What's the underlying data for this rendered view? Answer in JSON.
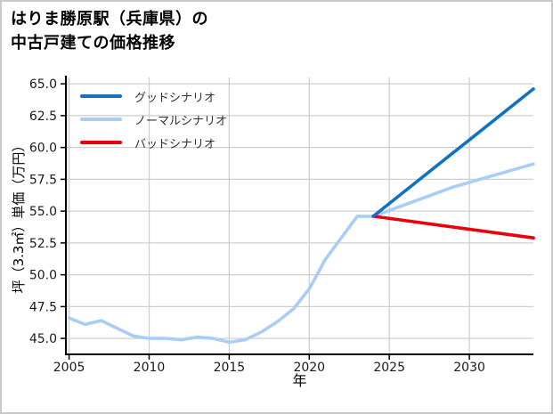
{
  "canvas": {
    "background": "#ffffff",
    "border_color": "#c8c8c8"
  },
  "header": {
    "title": "はりま勝原駅（兵庫県）の\n中古戸建ての価格推移"
  },
  "chart_data": {
    "type": "line",
    "title": "はりま勝原駅（兵庫県）の中古戸建ての価格推移",
    "xlabel": "年",
    "ylabel": "坪（3.3㎡）単価（万円）",
    "xlim": [
      2004.8,
      2034
    ],
    "ylim": [
      43.75,
      65.5
    ],
    "x_ticks": [
      "2005",
      "2010",
      "2015",
      "2020",
      "2025",
      "2030"
    ],
    "y_ticks": [
      "45.0",
      "47.5",
      "50.0",
      "52.5",
      "55.0",
      "57.5",
      "60.0",
      "62.5",
      "65.0"
    ],
    "grid": true,
    "grid_color": "#cfcfcf",
    "axis_color": "#000000",
    "tick_label_color": "#1a1a1a",
    "legend_position": "upper-left",
    "history": {
      "color": "#a9cdf4",
      "years": [
        2005,
        2006,
        2007,
        2008,
        2009,
        2010,
        2011,
        2012,
        2013,
        2014,
        2015,
        2016,
        2017,
        2018,
        2019,
        2020,
        2021,
        2022,
        2023,
        2024
      ],
      "values": [
        46.6,
        46.1,
        46.4,
        45.8,
        45.2,
        45.0,
        45.0,
        44.9,
        45.1,
        45.0,
        44.7,
        44.9,
        45.5,
        46.3,
        47.3,
        48.9,
        51.2,
        52.9,
        54.6,
        54.6
      ]
    },
    "scenarios": [
      {
        "label": "グッドシナリオ",
        "color": "#1172c0",
        "years": [
          2024,
          2034
        ],
        "values": [
          54.6,
          64.6
        ]
      },
      {
        "label": "ノーマルシナリオ",
        "color": "#a9cdf4",
        "years": [
          2024,
          2029,
          2034
        ],
        "values": [
          54.6,
          56.9,
          58.7
        ]
      },
      {
        "label": "バッドシナリオ",
        "color": "#e8000b",
        "years": [
          2024,
          2034
        ],
        "values": [
          54.6,
          52.9
        ]
      }
    ]
  }
}
